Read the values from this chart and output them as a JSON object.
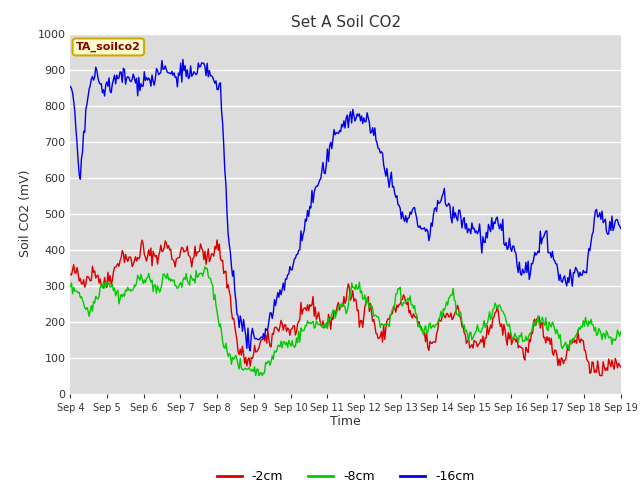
{
  "title": "Set A Soil CO2",
  "xlabel": "Time",
  "ylabel": "Soil CO2 (mV)",
  "ylim": [
    0,
    1000
  ],
  "fig_bg": "#d8d8d8",
  "plot_bg": "#dcdcdc",
  "grid_color": "#f0f0f0",
  "line_colors": {
    "neg2cm": "#dd0000",
    "neg8cm": "#00cc00",
    "neg16cm": "#0000ee"
  },
  "legend_labels": [
    "-2cm",
    "-8cm",
    "-16cm"
  ],
  "annotation_text": "TA_soilco2",
  "annotation_bg": "#ffffcc",
  "annotation_border": "#ccaa00",
  "x_tick_labels": [
    "Sep 4",
    "Sep 5",
    "Sep 6",
    "Sep 7",
    "Sep 8",
    "Sep 9",
    "Sep 10",
    "Sep 11",
    "Sep 12",
    "Sep 13",
    "Sep 14",
    "Sep 15",
    "Sep 16",
    "Sep 17",
    "Sep 18",
    "Sep 19"
  ],
  "n_points": 500
}
